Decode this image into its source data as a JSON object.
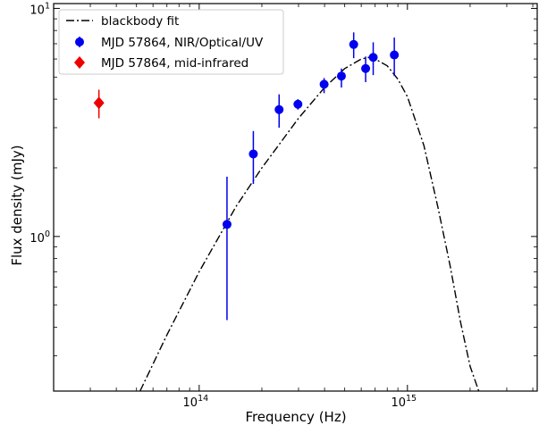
{
  "chart_data": {
    "type": "scatter",
    "title": "",
    "xlabel": "Frequency (Hz)",
    "ylabel": "Flux density (mJy)",
    "x_scale": "log",
    "y_scale": "log",
    "xlim": [
      20000000000000.0,
      4200000000000000.0
    ],
    "ylim": [
      0.21,
      10.5
    ],
    "x_ticks": [
      {
        "value": 100000000000000.0,
        "base": "10",
        "exp": "14"
      },
      {
        "value": 1000000000000000.0,
        "base": "10",
        "exp": "15"
      }
    ],
    "y_ticks": [
      {
        "value": 1,
        "base": "10",
        "exp": "0"
      },
      {
        "value": 10,
        "base": "10",
        "exp": "1"
      }
    ],
    "grid": false,
    "legend_position": "top-left",
    "series": [
      {
        "name": "blackbody fit",
        "type": "line",
        "style": "dashdot",
        "color": "#000000",
        "x": [
          52000000000000.0,
          70000000000000.0,
          100000000000000.0,
          150000000000000.0,
          200000000000000.0,
          300000000000000.0,
          400000000000000.0,
          500000000000000.0,
          600000000000000.0,
          650000000000000.0,
          700000000000000.0,
          800000000000000.0,
          900000000000000.0,
          1000000000000000.0,
          1200000000000000.0,
          1400000000000000.0,
          1600000000000000.0,
          1800000000000000.0,
          2000000000000000.0,
          2200000000000000.0
        ],
        "y": [
          0.21,
          0.37,
          0.7,
          1.35,
          2.0,
          3.3,
          4.5,
          5.45,
          6.0,
          6.1,
          6.0,
          5.6,
          4.9,
          4.1,
          2.5,
          1.35,
          0.75,
          0.42,
          0.27,
          0.21
        ]
      },
      {
        "name": "MJD 57864, NIR/Optical/UV",
        "type": "scatter",
        "marker": "circle",
        "color": "#0000ee",
        "x": [
          136000000000000.0,
          182000000000000.0,
          242000000000000.0,
          298000000000000.0,
          398000000000000.0,
          482000000000000.0,
          552000000000000.0,
          630000000000000.0,
          685000000000000.0,
          865000000000000.0
        ],
        "y": [
          1.13,
          2.3,
          3.6,
          3.8,
          4.65,
          5.05,
          6.95,
          5.45,
          6.1,
          6.25
        ],
        "y_err_low": [
          0.7,
          0.6,
          0.6,
          0.2,
          0.4,
          0.55,
          0.9,
          0.7,
          1.0,
          1.2
        ],
        "y_err_high": [
          0.7,
          0.6,
          0.6,
          0.2,
          0.3,
          0.4,
          0.9,
          0.7,
          1.0,
          1.2
        ]
      },
      {
        "name": "MJD 57864, mid-infrared",
        "type": "scatter",
        "marker": "diamond",
        "color": "#ee0000",
        "x": [
          33000000000000.0
        ],
        "y": [
          3.85
        ],
        "y_err_low": [
          0.55
        ],
        "y_err_high": [
          0.55
        ]
      }
    ]
  }
}
